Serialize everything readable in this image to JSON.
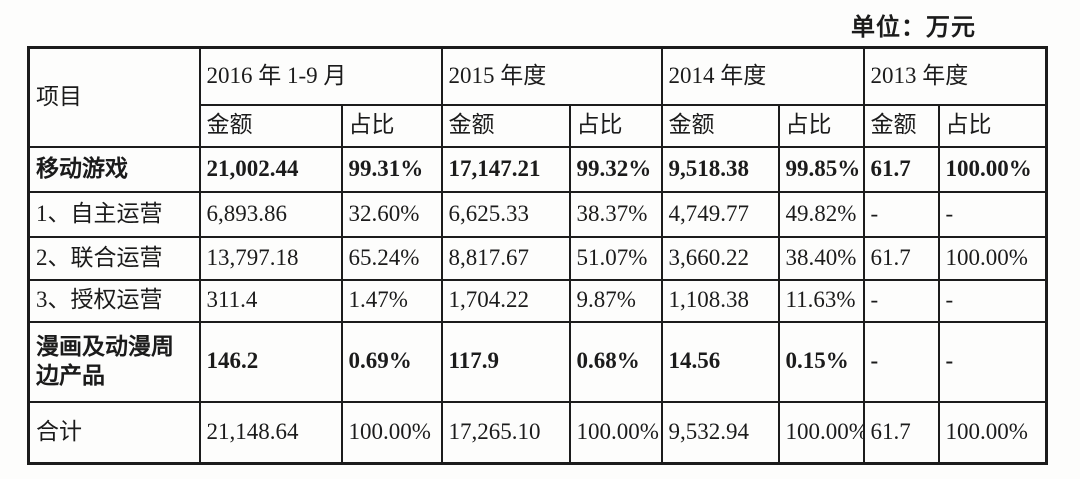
{
  "unit_label": "单位：万元",
  "table": {
    "item_header": "项目",
    "period_headers": [
      "2016 年 1-9 月",
      "2015 年度",
      "2014 年度",
      "2013 年度"
    ],
    "sub_headers": [
      "金额",
      "占比"
    ],
    "rows": [
      {
        "label": "移动游戏",
        "bold": true,
        "values": [
          "21,002.44",
          "99.31%",
          "17,147.21",
          "99.32%",
          "9,518.38",
          "99.85%",
          "61.7",
          "100.00%"
        ]
      },
      {
        "label": "1、自主运营",
        "bold": false,
        "values": [
          "6,893.86",
          "32.60%",
          "6,625.33",
          "38.37%",
          "4,749.77",
          "49.82%",
          "-",
          "-"
        ]
      },
      {
        "label": "2、联合运营",
        "bold": false,
        "values": [
          "13,797.18",
          "65.24%",
          "8,817.67",
          "51.07%",
          "3,660.22",
          "38.40%",
          "61.7",
          "100.00%"
        ]
      },
      {
        "label": "3、授权运营",
        "bold": false,
        "values": [
          "311.4",
          "1.47%",
          "1,704.22",
          "9.87%",
          "1,108.38",
          "11.63%",
          "-",
          "-"
        ]
      },
      {
        "label": "漫画及动漫周边产品",
        "bold": true,
        "values": [
          "146.2",
          "0.69%",
          "117.9",
          "0.68%",
          "14.56",
          "0.15%",
          "-",
          "-"
        ]
      },
      {
        "label": "合计",
        "bold": false,
        "values": [
          "21,148.64",
          "100.00%",
          "17,265.10",
          "100.00%",
          "9,532.94",
          "100.00%",
          "61.7",
          "100.00%"
        ]
      }
    ]
  }
}
